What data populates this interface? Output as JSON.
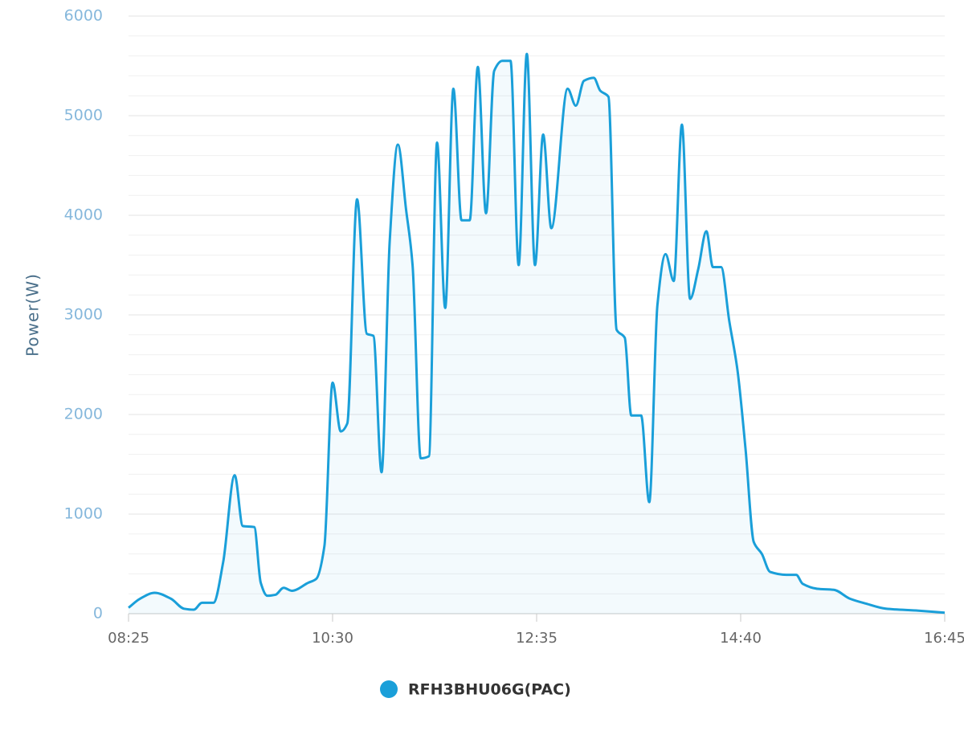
{
  "chart_data": {
    "type": "area",
    "y_label": "Power(W)",
    "x": [
      "08:25",
      "08:32",
      "08:41",
      "08:51",
      "08:59",
      "09:05",
      "09:10",
      "09:17",
      "09:23",
      "09:30",
      "09:35",
      "09:42",
      "09:46",
      "09:50",
      "09:55",
      "10:00",
      "10:05",
      "10:15",
      "10:20",
      "10:25",
      "10:30",
      "10:35",
      "10:39",
      "10:45",
      "10:51",
      "10:55",
      "11:00",
      "11:05",
      "11:10",
      "11:15",
      "11:19",
      "11:24",
      "11:29",
      "11:34",
      "11:39",
      "11:44",
      "11:49",
      "11:54",
      "11:59",
      "12:04",
      "12:09",
      "12:14",
      "12:19",
      "12:24",
      "12:29",
      "12:34",
      "12:39",
      "12:44",
      "12:54",
      "12:59",
      "13:04",
      "13:10",
      "13:14",
      "13:19",
      "13:24",
      "13:29",
      "13:33",
      "13:39",
      "13:44",
      "13:49",
      "13:54",
      "13:59",
      "14:04",
      "14:09",
      "14:14",
      "14:19",
      "14:23",
      "14:28",
      "14:33",
      "14:38",
      "14:43",
      "14:48",
      "14:53",
      "14:58",
      "15:08",
      "15:14",
      "15:18",
      "15:27",
      "15:37",
      "15:47",
      "15:57",
      "16:09",
      "16:29",
      "16:45"
    ],
    "series": [
      {
        "name": "RFH3BHU06G(PAC)",
        "color": "#1a9fd9",
        "values": [
          60,
          150,
          210,
          150,
          50,
          40,
          110,
          110,
          520,
          1390,
          880,
          870,
          310,
          180,
          190,
          260,
          230,
          310,
          350,
          680,
          2320,
          1830,
          1910,
          4160,
          2810,
          2790,
          1420,
          3740,
          4710,
          4060,
          3500,
          1560,
          1580,
          4730,
          3070,
          5270,
          3950,
          3950,
          5490,
          4020,
          5450,
          5550,
          5550,
          3500,
          5620,
          3500,
          4810,
          3870,
          5270,
          5100,
          5350,
          5380,
          5250,
          5190,
          2850,
          2770,
          1990,
          1990,
          1120,
          3100,
          3610,
          3340,
          4910,
          3160,
          3460,
          3840,
          3480,
          3480,
          2940,
          2450,
          1650,
          720,
          600,
          420,
          390,
          390,
          300,
          250,
          240,
          150,
          100,
          50,
          30,
          10
        ]
      }
    ],
    "xlim": [
      "08:25",
      "16:45"
    ],
    "xticks": [
      "08:25",
      "10:30",
      "12:35",
      "14:40",
      "16:45"
    ],
    "ylim": [
      0,
      6000
    ],
    "yticks": [
      0,
      1000,
      2000,
      3000,
      4000,
      5000,
      6000
    ],
    "grid": true
  }
}
